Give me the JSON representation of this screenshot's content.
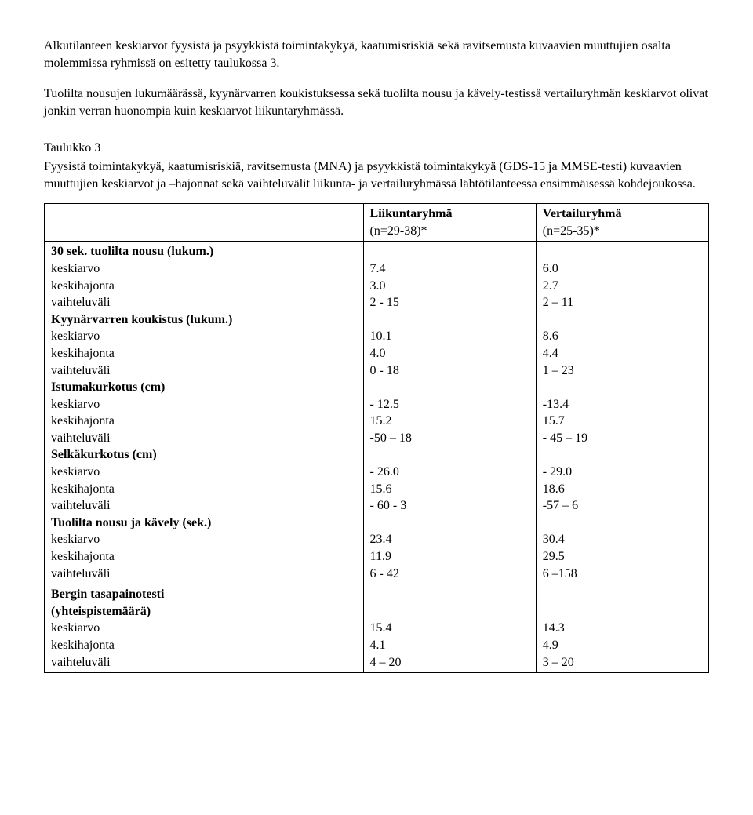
{
  "paragraphs": {
    "p1": "Alkutilanteen keskiarvot fyysistä ja psyykkistä toimintakykyä, kaatumisriskiä sekä ravitsemusta kuvaavien muuttujien osalta molemmissa ryhmissä on esitetty taulukossa 3.",
    "p2": "Tuolilta nousujen lukumäärässä, kyynärvarren koukistuksessa sekä tuolilta nousu ja kävely-testissä vertailuryhmän keskiarvot olivat jonkin verran huonompia kuin keskiarvot liikuntaryhmässä."
  },
  "tableTitle": "Taulukko 3",
  "tableCaption": "Fyysistä toimintakykyä, kaatumisriskiä, ravitsemusta (MNA) ja psyykkistä toimintakykyä (GDS-15 ja MMSE-testi) kuvaavien muuttujien keskiarvot ja –hajonnat sekä vaihteluvälit liikunta- ja vertailuryhmässä lähtötilanteessa ensimmäisessä kohdejoukossa.",
  "columns": {
    "col1": {
      "label": "Liikuntaryhmä",
      "n": "(n=29-38)*"
    },
    "col2": {
      "label": "Vertailuryhmä",
      "n": "(n=25-35)*"
    }
  },
  "statLabels": {
    "mean": "keskiarvo",
    "sd": "keskihajonta",
    "range": "vaihteluväli"
  },
  "groups": [
    {
      "title": "30 sek. tuolilta nousu (lukum.)",
      "mean": {
        "c1": "7.4",
        "c2": "6.0"
      },
      "sd": {
        "c1": "3.0",
        "c2": "2.7"
      },
      "range": {
        "c1": "2 - 15",
        "c2": "2 – 11"
      }
    },
    {
      "title": "Kyynärvarren koukistus (lukum.)",
      "mean": {
        "c1": "10.1",
        "c2": " 8.6"
      },
      "sd": {
        "c1": " 4.0",
        "c2": " 4.4"
      },
      "range": {
        "c1": "0 - 18",
        "c2": "1 – 23"
      }
    },
    {
      "title": "Istumakurkotus (cm)",
      "mean": {
        "c1": "- 12.5",
        "c2": "-13.4"
      },
      "sd": {
        "c1": "15.2",
        "c2": "15.7"
      },
      "range": {
        "c1": "-50 – 18",
        "c2": "- 45 – 19"
      }
    },
    {
      "title": "Selkäkurkotus (cm)",
      "mean": {
        "c1": "- 26.0",
        "c2": "- 29.0"
      },
      "sd": {
        "c1": "15.6",
        "c2": "18.6"
      },
      "range": {
        "c1": "- 60 - 3",
        "c2": "-57 – 6"
      }
    },
    {
      "title": "Tuolilta nousu ja kävely (sek.)",
      "mean": {
        "c1": "23.4",
        "c2": "30.4"
      },
      "sd": {
        "c1": "11.9",
        "c2": "29.5"
      },
      "range": {
        "c1": "6 - 42",
        "c2": "6 –158"
      }
    }
  ],
  "groups2": [
    {
      "titleLine1": "Bergin tasapainotesti",
      "titleLine2": "(yhteispistemäärä)",
      "mean": {
        "c1": "15.4",
        "c2": "14.3"
      },
      "sd": {
        "c1": "4.1",
        "c2": "4.9"
      },
      "range": {
        "c1": "4 – 20",
        "c2": "3 – 20"
      }
    }
  ]
}
